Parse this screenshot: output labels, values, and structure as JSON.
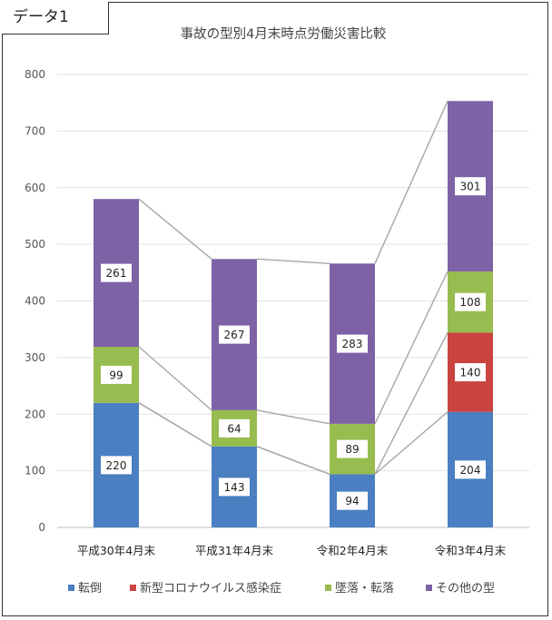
{
  "tag_label": "データ1",
  "chart_data": {
    "type": "bar",
    "stacked": true,
    "title": "事故の型別4月末時点労働災害比較",
    "categories": [
      "平成30年4月末",
      "平成31年4月末",
      "令和2年4月末",
      "令和3年4月末"
    ],
    "series": [
      {
        "name": "転倒",
        "color": "#4a7fc1",
        "values": [
          220,
          143,
          94,
          204
        ]
      },
      {
        "name": "新型コロナウイルス感染症",
        "color": "#c9443f",
        "values": [
          0,
          0,
          0,
          140
        ]
      },
      {
        "name": "墜落・転落",
        "color": "#97bc4f",
        "values": [
          99,
          64,
          89,
          108
        ]
      },
      {
        "name": "その他の型",
        "color": "#7e62a6",
        "values": [
          261,
          267,
          283,
          301
        ]
      }
    ],
    "ylim": [
      0,
      800
    ],
    "yticks": [
      0,
      100,
      200,
      300,
      400,
      500,
      600,
      700,
      800
    ],
    "grid": true,
    "legend": "bottom",
    "series_lines": true
  }
}
